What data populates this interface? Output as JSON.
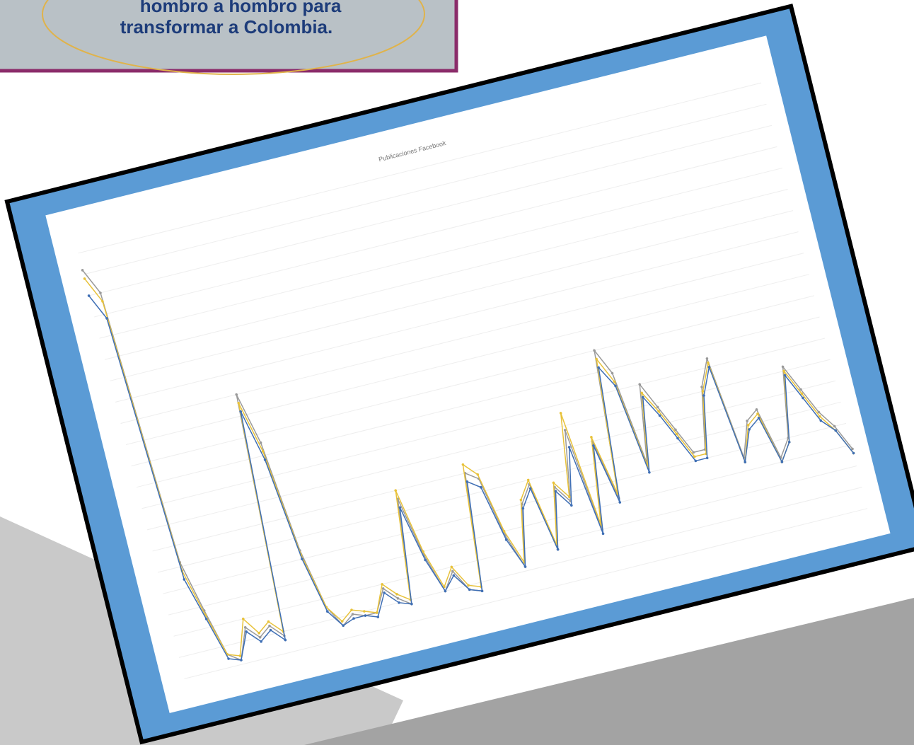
{
  "header": {
    "lines": [
      "hombro a hombro para",
      "transformar a Colombia."
    ]
  },
  "chart_data": {
    "type": "line",
    "title": "Publicaciones Facebook",
    "grid": true,
    "ylim": [
      0,
      100
    ],
    "categories": [
      null,
      null,
      null,
      null,
      null,
      null,
      null,
      null,
      null,
      null,
      null,
      null,
      null,
      null,
      null,
      null,
      null,
      null,
      null,
      null,
      null,
      null,
      null,
      null,
      null,
      null,
      null,
      null,
      null,
      null,
      null,
      null,
      null,
      null,
      null,
      null,
      null,
      null,
      null,
      null,
      null,
      null,
      null,
      null,
      null,
      null,
      null,
      null,
      null,
      null,
      null,
      null,
      null,
      null,
      null,
      null,
      null,
      null,
      null,
      null
    ],
    "series": [
      {
        "color": "#9a9a9a",
        "values": [
          96,
          90,
          26,
          14,
          3,
          1,
          8,
          5,
          7,
          4,
          60,
          48,
          22,
          8,
          3,
          5,
          4,
          4,
          9,
          6,
          4,
          28,
          14,
          5,
          9,
          4,
          3,
          30,
          28,
          14,
          6,
          20,
          24,
          8,
          22,
          18,
          34,
          10,
          30,
          16,
          50,
          44,
          22,
          40,
          34,
          28,
          22,
          22,
          36,
          42,
          18,
          26,
          28,
          16,
          20,
          36,
          30,
          24,
          20,
          14
        ]
      },
      {
        "color": "#e8c23a",
        "values": [
          94,
          88,
          24,
          13,
          3,
          2,
          10,
          6,
          8,
          5,
          58,
          46,
          21,
          8,
          4,
          6,
          5,
          4,
          10,
          7,
          5,
          30,
          15,
          6,
          10,
          5,
          4,
          32,
          29,
          15,
          7,
          21,
          25,
          9,
          23,
          19,
          38,
          11,
          31,
          17,
          48,
          42,
          21,
          38,
          33,
          27,
          21,
          21,
          35,
          41,
          17,
          25,
          27,
          15,
          19,
          35,
          29,
          23,
          19,
          13
        ]
      },
      {
        "color": "#3f6fb5",
        "values": [
          90,
          84,
          22,
          12,
          2,
          1,
          7,
          4,
          6,
          3,
          56,
          44,
          20,
          7,
          3,
          4,
          4,
          3,
          8,
          5,
          4,
          26,
          13,
          5,
          8,
          4,
          3,
          28,
          26,
          13,
          6,
          19,
          23,
          8,
          21,
          17,
          30,
          9,
          29,
          15,
          46,
          41,
          20,
          37,
          32,
          26,
          20,
          20,
          34,
          40,
          17,
          24,
          26,
          15,
          19,
          34,
          28,
          22,
          19,
          13
        ]
      }
    ]
  }
}
